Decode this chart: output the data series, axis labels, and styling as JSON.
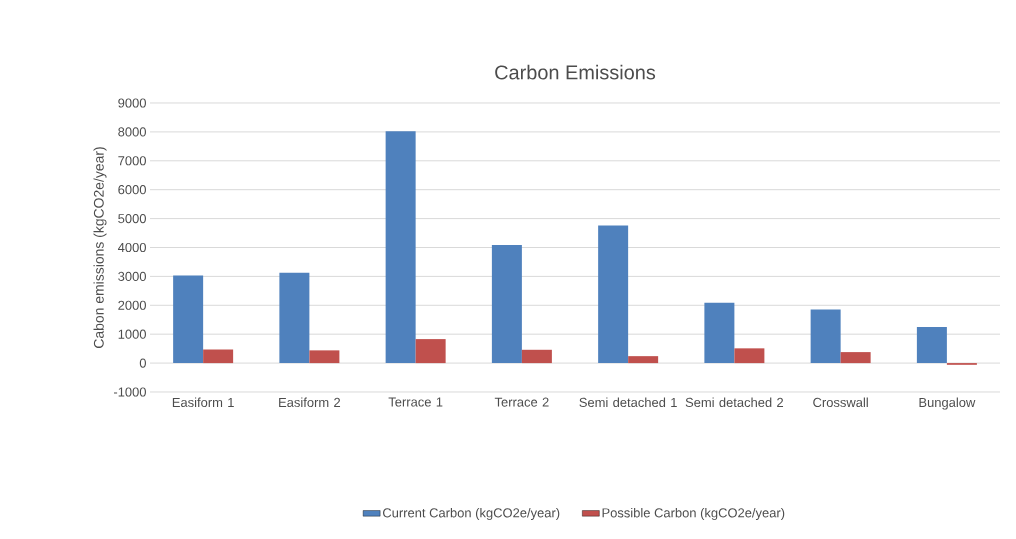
{
  "chart_data": {
    "type": "bar",
    "title": "Carbon Emissions",
    "ylabel": "Cabon emissions (kgCO2e/year)",
    "categories": [
      "Easiform 1",
      "Easiform 2",
      "Terrace 1",
      "Terrace 2",
      "Semi detached 1",
      "Semi detached 2",
      "Crosswall",
      "Bungalow"
    ],
    "series": [
      {
        "name": "Current Carbon (kgCO2e/year)",
        "color": "#4f81bd",
        "values": [
          3030,
          3130,
          8020,
          4090,
          4760,
          2090,
          1850,
          1250
        ]
      },
      {
        "name": "Possible Carbon (kgCO2e/year)",
        "color": "#c0504d",
        "values": [
          470,
          440,
          830,
          460,
          240,
          510,
          380,
          -60
        ]
      }
    ],
    "ylim": [
      -1000,
      9000
    ],
    "yticks": [
      -1000,
      0,
      1000,
      2000,
      3000,
      4000,
      5000,
      6000,
      7000,
      8000,
      9000
    ],
    "grid": "y",
    "legend": "bottom"
  }
}
